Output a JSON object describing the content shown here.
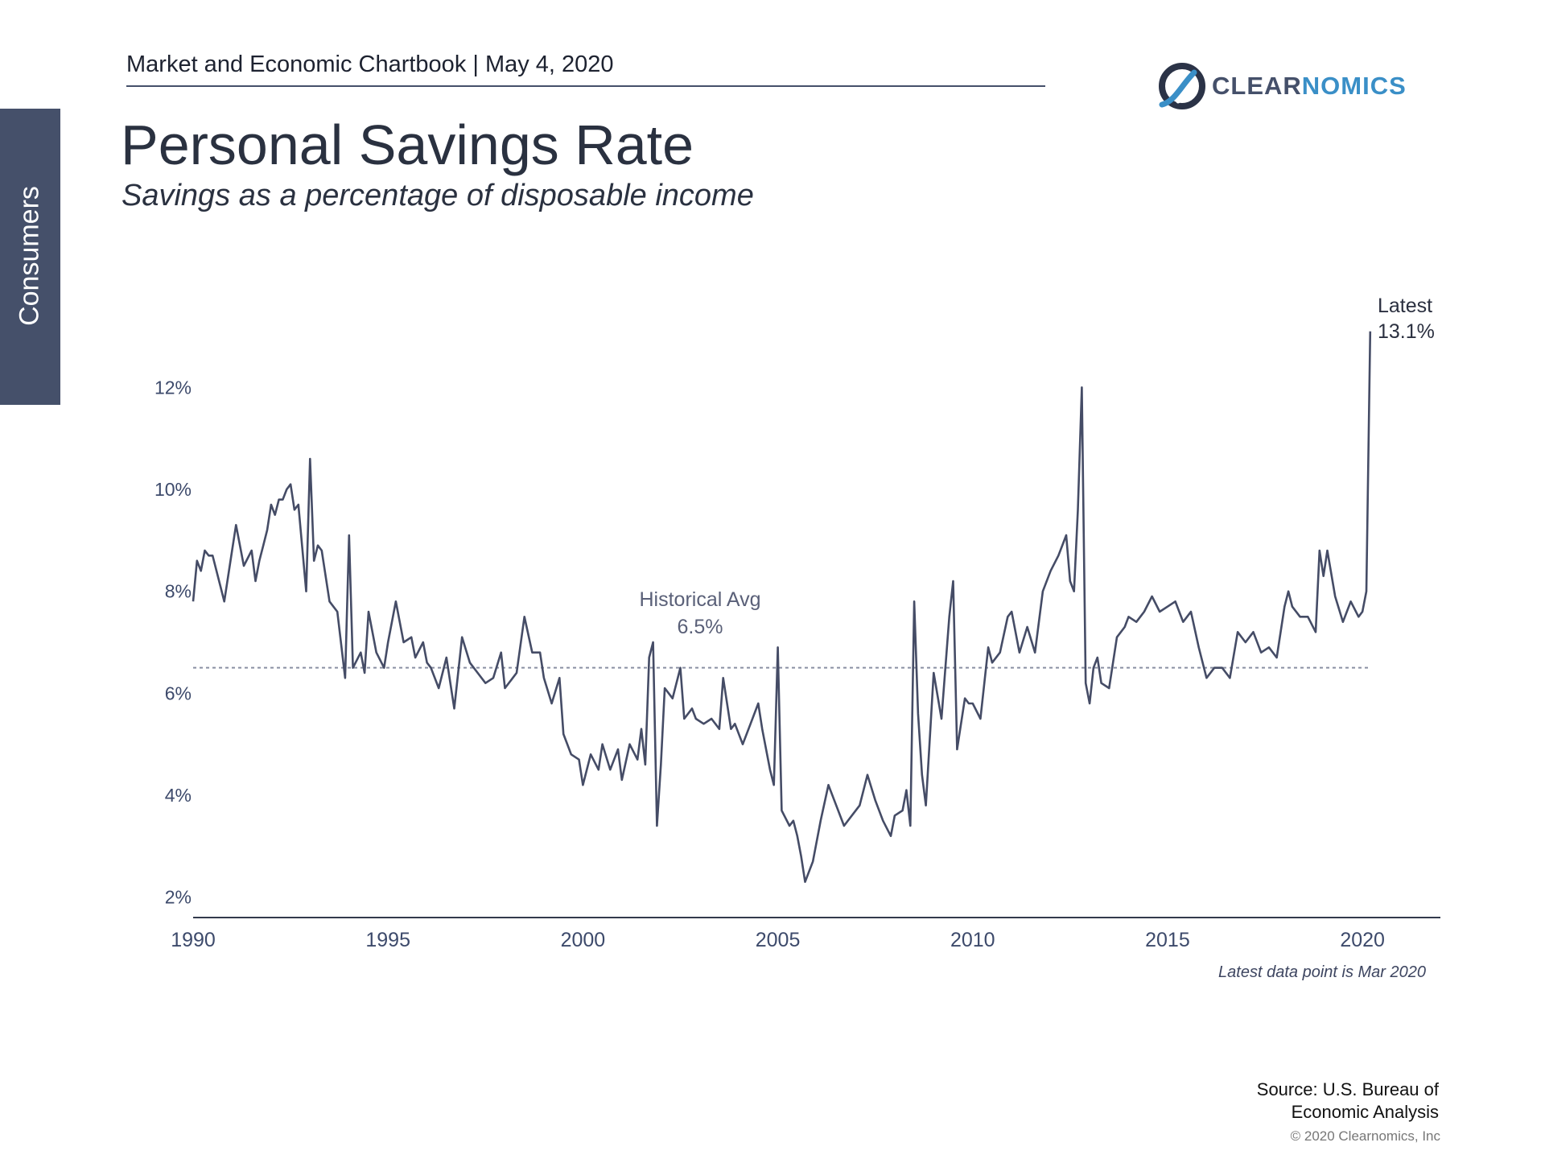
{
  "header": {
    "chartbook": "Market and Economic Chartbook | May 4, 2020"
  },
  "sidebar": {
    "label": "Consumers"
  },
  "logo": {
    "word_part1": "CLEAR",
    "word_part2": "NOMICS"
  },
  "title": "Personal Savings Rate",
  "subtitle": "Savings as a percentage of disposable income",
  "footer": {
    "source_line1": "Source: U.S. Bureau of",
    "source_line2": "Economic Analysis",
    "copyright": "© 2020 Clearnomics, Inc"
  },
  "colors": {
    "line": "#454c66",
    "avg": "#8a90a3",
    "axis": "#333a4c",
    "tick_label": "#3d4a6b"
  },
  "chart_data": {
    "type": "line",
    "x_range": [
      1990,
      2022
    ],
    "y_range": [
      1.6,
      13.6
    ],
    "y_ticks": [
      2,
      4,
      6,
      8,
      10,
      12
    ],
    "y_tick_labels": [
      "2%",
      "4%",
      "6%",
      "8%",
      "10%",
      "12%"
    ],
    "x_ticks": [
      1990,
      1995,
      2000,
      2005,
      2010,
      2015,
      2020
    ],
    "x_tick_labels": [
      "1990",
      "1995",
      "2000",
      "2005",
      "2010",
      "2015",
      "2020"
    ],
    "grid": false,
    "historical_average": {
      "value": 6.5,
      "label_line1": "Historical Avg",
      "label_line2": "6.5%"
    },
    "latest_annotation": {
      "line1": "Latest",
      "line2": "13.1%"
    },
    "note": "Latest data point is Mar 2020",
    "series": [
      {
        "x": [
          1990.0,
          1990.1,
          1990.2,
          1990.3,
          1990.4,
          1990.5,
          1990.7,
          1990.8,
          1991.0,
          1991.1,
          1991.3,
          1991.5,
          1991.6,
          1991.7,
          1991.8,
          1991.9,
          1992.0,
          1992.1,
          1992.2,
          1992.3,
          1992.4,
          1992.5,
          1992.6,
          1992.7,
          1992.9,
          1993.0,
          1993.1,
          1993.2,
          1993.3,
          1993.5,
          1993.7,
          1993.9,
          1994.0,
          1994.1,
          1994.3,
          1994.4,
          1994.5,
          1994.7,
          1994.9,
          1995.0,
          1995.2,
          1995.4,
          1995.6,
          1995.7,
          1995.9,
          1996.0,
          1996.1,
          1996.3,
          1996.5,
          1996.7,
          1996.9,
          1997.1,
          1997.3,
          1997.5,
          1997.7,
          1997.9,
          1998.0,
          1998.2,
          1998.3,
          1998.5,
          1998.7,
          1998.9,
          1999.0,
          1999.2,
          1999.4,
          1999.5,
          1999.7,
          1999.9,
          2000.0,
          2000.2,
          2000.4,
          2000.5,
          2000.7,
          2000.9,
          2001.0,
          2001.2,
          2001.4,
          2001.5,
          2001.6,
          2001.7,
          2001.8,
          2001.9,
          2002.0,
          2002.1,
          2002.3,
          2002.5,
          2002.6,
          2002.8,
          2002.9,
          2003.1,
          2003.3,
          2003.5,
          2003.6,
          2003.8,
          2003.9,
          2004.1,
          2004.3,
          2004.5,
          2004.6,
          2004.8,
          2004.9,
          2005.0,
          2005.1,
          2005.3,
          2005.4,
          2005.5,
          2005.6,
          2005.7,
          2005.9,
          2006.1,
          2006.3,
          2006.5,
          2006.7,
          2006.9,
          2007.1,
          2007.3,
          2007.5,
          2007.7,
          2007.9,
          2008.0,
          2008.2,
          2008.3,
          2008.4,
          2008.5,
          2008.6,
          2008.7,
          2008.8,
          2009.0,
          2009.2,
          2009.4,
          2009.5,
          2009.6,
          2009.8,
          2009.9,
          2010.0,
          2010.2,
          2010.4,
          2010.5,
          2010.7,
          2010.9,
          2011.0,
          2011.2,
          2011.4,
          2011.6,
          2011.8,
          2012.0,
          2012.2,
          2012.4,
          2012.5,
          2012.6,
          2012.7,
          2012.8,
          2012.9,
          2013.0,
          2013.1,
          2013.2,
          2013.3,
          2013.5,
          2013.7,
          2013.9,
          2014.0,
          2014.2,
          2014.4,
          2014.6,
          2014.8,
          2015.0,
          2015.2,
          2015.4,
          2015.6,
          2015.8,
          2016.0,
          2016.2,
          2016.4,
          2016.6,
          2016.8,
          2017.0,
          2017.2,
          2017.4,
          2017.6,
          2017.8,
          2018.0,
          2018.1,
          2018.2,
          2018.4,
          2018.6,
          2018.8,
          2018.9,
          2019.0,
          2019.1,
          2019.3,
          2019.5,
          2019.7,
          2019.9,
          2020.0,
          2020.1,
          2020.2
        ],
        "y": [
          7.8,
          8.6,
          8.4,
          8.8,
          8.7,
          8.7,
          8.1,
          7.8,
          8.8,
          9.3,
          8.5,
          8.8,
          8.2,
          8.6,
          8.9,
          9.2,
          9.7,
          9.5,
          9.8,
          9.8,
          10.0,
          10.1,
          9.6,
          9.7,
          8.0,
          10.6,
          8.6,
          8.9,
          8.8,
          7.8,
          7.6,
          6.3,
          9.1,
          6.5,
          6.8,
          6.4,
          7.6,
          6.8,
          6.5,
          7.0,
          7.8,
          7.0,
          7.1,
          6.7,
          7.0,
          6.6,
          6.5,
          6.1,
          6.7,
          5.7,
          7.1,
          6.6,
          6.4,
          6.2,
          6.3,
          6.8,
          6.1,
          6.3,
          6.4,
          7.5,
          6.8,
          6.8,
          6.3,
          5.8,
          6.3,
          5.2,
          4.8,
          4.7,
          4.2,
          4.8,
          4.5,
          5.0,
          4.5,
          4.9,
          4.3,
          5.0,
          4.7,
          5.3,
          4.6,
          6.7,
          7.0,
          3.4,
          4.6,
          6.1,
          5.9,
          6.5,
          5.5,
          5.7,
          5.5,
          5.4,
          5.5,
          5.3,
          6.3,
          5.3,
          5.4,
          5.0,
          5.4,
          5.8,
          5.3,
          4.5,
          4.2,
          6.9,
          3.7,
          3.4,
          3.5,
          3.2,
          2.8,
          2.3,
          2.7,
          3.5,
          4.2,
          3.8,
          3.4,
          3.6,
          3.8,
          4.4,
          3.9,
          3.5,
          3.2,
          3.6,
          3.7,
          4.1,
          3.4,
          7.8,
          5.6,
          4.4,
          3.8,
          6.4,
          5.5,
          7.5,
          8.2,
          4.9,
          5.9,
          5.8,
          5.8,
          5.5,
          6.9,
          6.6,
          6.8,
          7.5,
          7.6,
          6.8,
          7.3,
          6.8,
          8.0,
          8.4,
          8.7,
          9.1,
          8.2,
          8.0,
          9.6,
          12.0,
          6.2,
          5.8,
          6.5,
          6.7,
          6.2,
          6.1,
          7.1,
          7.3,
          7.5,
          7.4,
          7.6,
          7.9,
          7.6,
          7.7,
          7.8,
          7.4,
          7.6,
          6.9,
          6.3,
          6.5,
          6.5,
          6.3,
          7.2,
          7.0,
          7.2,
          6.8,
          6.9,
          6.7,
          7.7,
          8.0,
          7.7,
          7.5,
          7.5,
          7.2,
          8.8,
          8.3,
          8.8,
          7.9,
          7.4,
          7.8,
          7.5,
          7.6,
          8.0,
          13.1
        ]
      }
    ]
  }
}
